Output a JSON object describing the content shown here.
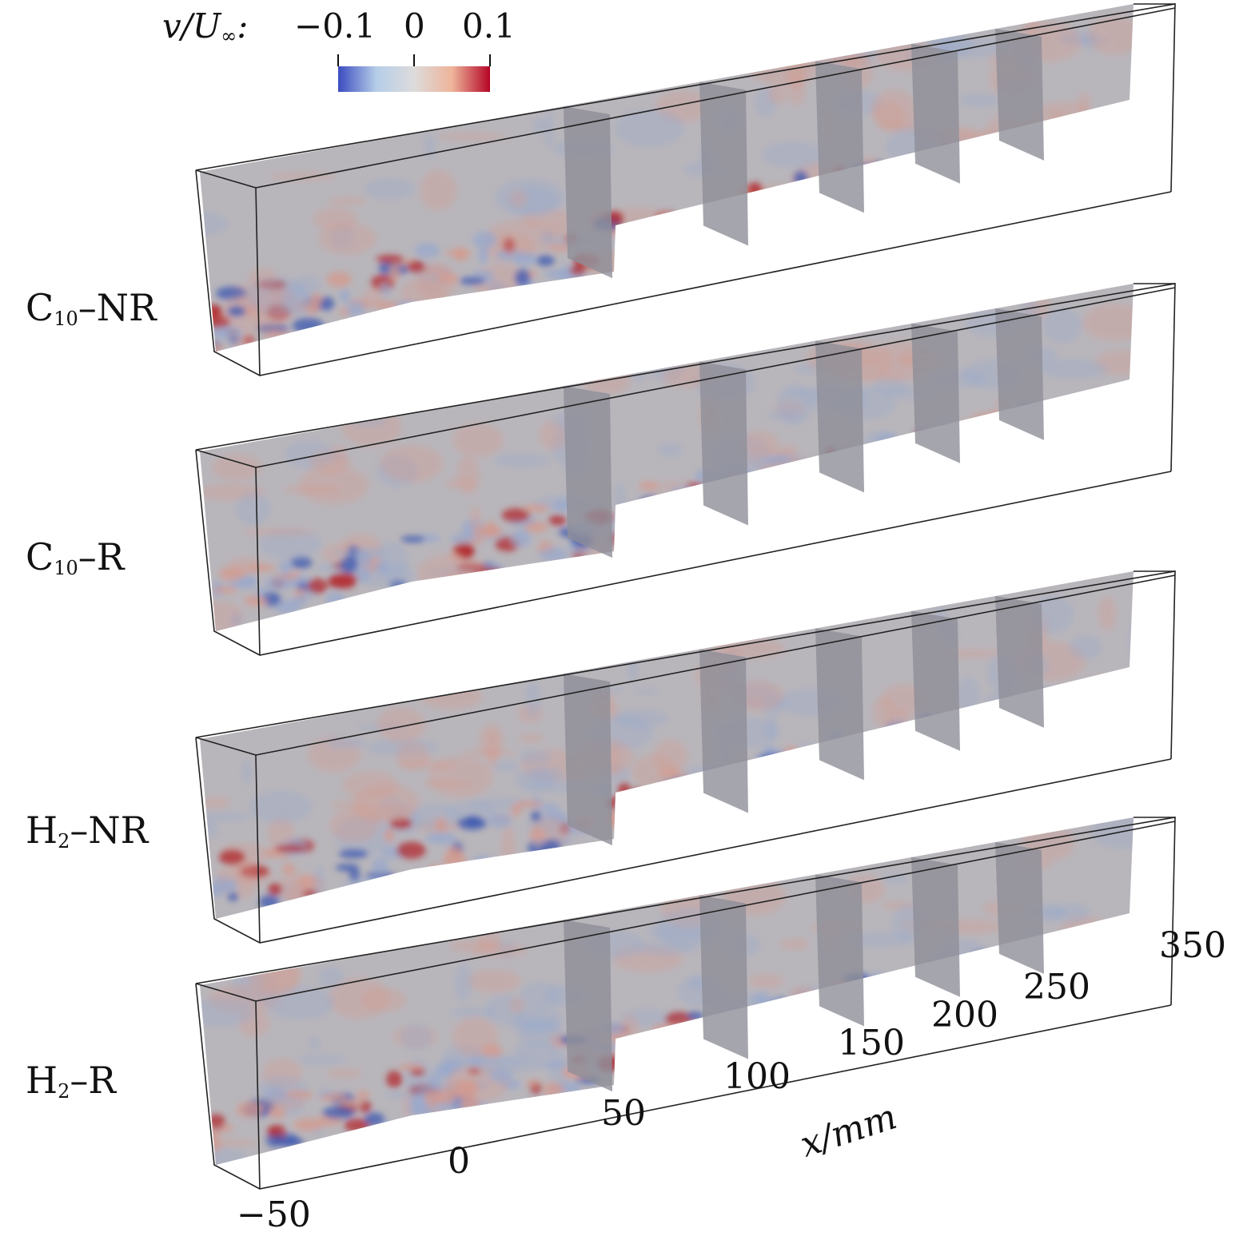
{
  "colorbar": {
    "label_var": "v/U",
    "label_sub": "∞",
    "label_suffix": ":",
    "ticks": [
      "−0.1",
      "0",
      "0.1"
    ],
    "range": [
      -0.1,
      0.1
    ],
    "colors": [
      "#3b4cc0",
      "#b5cde8",
      "#dddcdc",
      "#eeb49a",
      "#b40426"
    ]
  },
  "panels": [
    {
      "name": "C",
      "sub": "10",
      "suffix": "–NR"
    },
    {
      "name": "C",
      "sub": "10",
      "suffix": "–R"
    },
    {
      "name": "H",
      "sub": "2",
      "suffix": "–NR"
    },
    {
      "name": "H",
      "sub": "2",
      "suffix": "–R"
    }
  ],
  "axis": {
    "label": "x/mm",
    "ticks": [
      "−50",
      "0",
      "50",
      "100",
      "150",
      "200",
      "250",
      "350"
    ]
  }
}
